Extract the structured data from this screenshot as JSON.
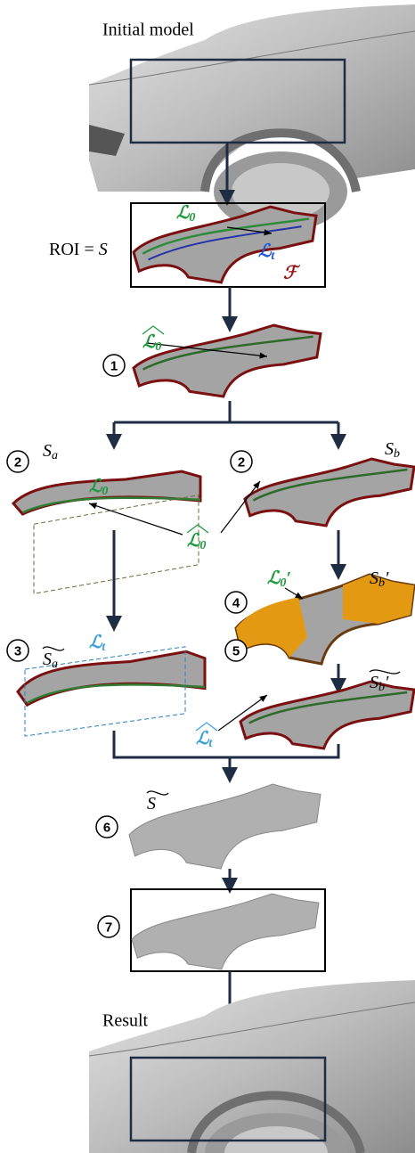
{
  "header": {
    "title": "Initial model"
  },
  "roi": {
    "text": "ROI = ",
    "var": "S",
    "curve": {
      "base": "ℒ",
      "sub": "0"
    },
    "target": {
      "base": "ℒ",
      "sub": "t"
    },
    "fixed": "ℱ"
  },
  "steps": {
    "s1": {
      "number": "1",
      "curve": {
        "base": "ℒ",
        "sub": "0"
      }
    },
    "s2a": {
      "number": "2",
      "surface": {
        "base": "S",
        "sub": "a"
      },
      "curve": {
        "base": "ℒ",
        "sub": "0"
      },
      "projected": {
        "base": "ℒ",
        "sub": "0"
      }
    },
    "s2b": {
      "number": "2",
      "surface": {
        "base": "S",
        "sub": "b"
      }
    },
    "s4": {
      "number": "4",
      "curve": {
        "base": "ℒ",
        "sub": "0",
        "prime": "′"
      },
      "surface": {
        "base": "S",
        "sub": "b",
        "prime": "′"
      }
    },
    "s3": {
      "number": "3",
      "surface": {
        "base": "S",
        "sub": "a"
      },
      "curve": {
        "base": "ℒ",
        "sub": "t"
      },
      "projected": {
        "base": "ℒ",
        "sub": "t"
      }
    },
    "s5": {
      "number": "5",
      "surface": {
        "base": "S",
        "sub": "b",
        "prime": "′"
      }
    },
    "s6": {
      "number": "6",
      "surface": {
        "base": "S"
      }
    },
    "s7": {
      "number": "7"
    }
  },
  "footer": {
    "title": "Result"
  }
}
